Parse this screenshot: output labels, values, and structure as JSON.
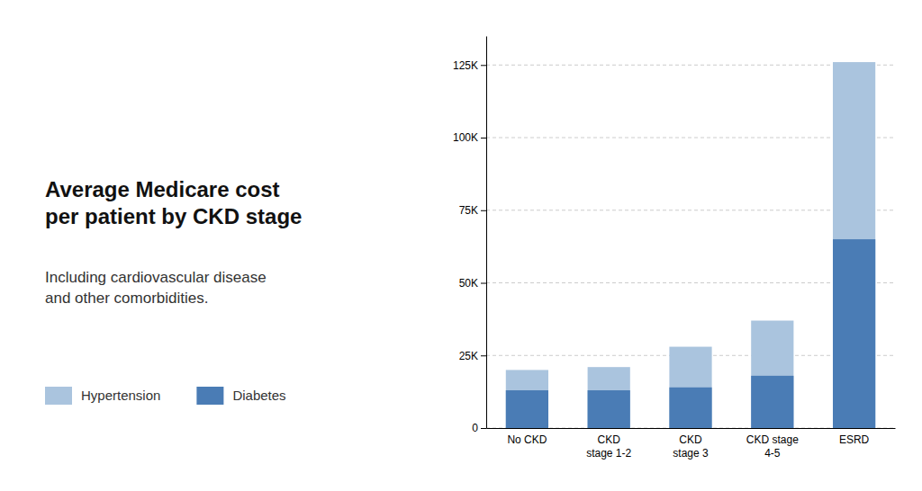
{
  "chart_data": {
    "type": "bar",
    "title": "Average Medicare cost\nper patient by CKD stage",
    "subtitle": "Including cardiovascular disease\nand other comorbidities.",
    "categories": [
      "No CKD",
      "CKD\nstage 1-2",
      "CKD\nstage 3",
      "CKD stage\n4-5",
      "ESRD"
    ],
    "series": [
      {
        "name": "Hypertension",
        "color": "#aac4de",
        "values": [
          20000,
          21000,
          28000,
          37000,
          126000
        ]
      },
      {
        "name": "Diabetes",
        "color": "#4a7cb5",
        "values": [
          13000,
          13000,
          14000,
          18000,
          65000
        ]
      }
    ],
    "ylim": [
      0,
      135000
    ],
    "yticks": [
      0,
      {
        "value": 25000,
        "label": "25K"
      },
      {
        "value": 50000,
        "label": "50K"
      },
      {
        "value": 75000,
        "label": "75K"
      },
      {
        "value": 100000,
        "label": "100K"
      },
      {
        "value": 125000,
        "label": "125K"
      }
    ],
    "grid": true
  }
}
